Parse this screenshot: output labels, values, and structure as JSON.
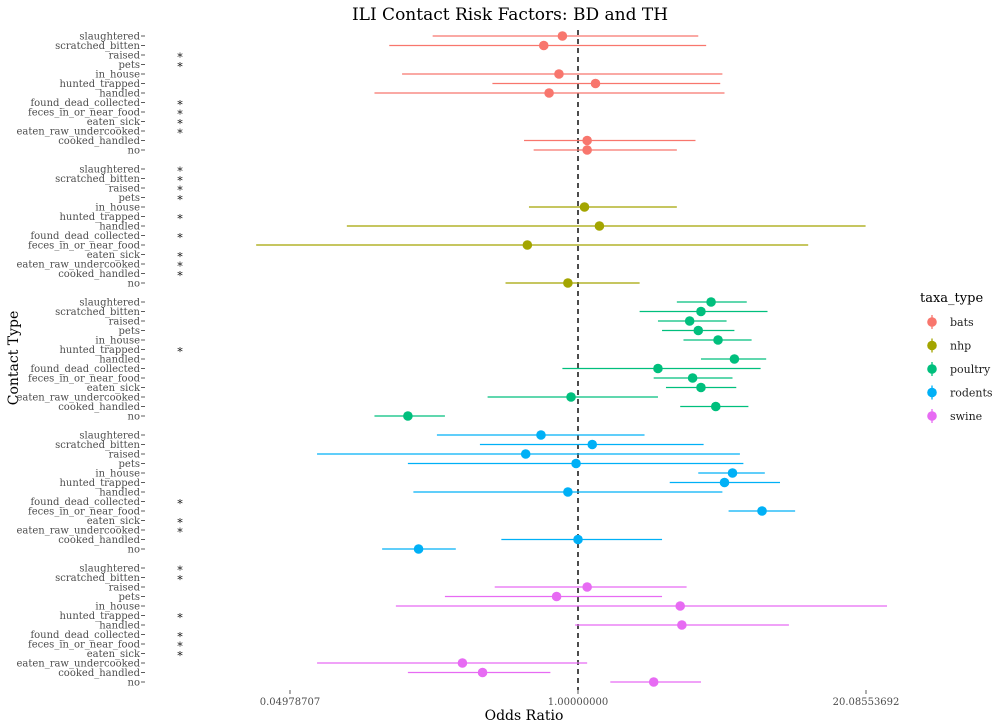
{
  "chart_data": {
    "type": "scatter",
    "subtype": "forest-plot",
    "title": "ILI Contact Risk Factors: BD and TH",
    "xlabel": "Odds Ratio",
    "ylabel": "Contact Type",
    "x_scale": "log",
    "x_ticks": [
      0.04978707,
      1.0,
      20.08553692
    ],
    "x_tick_labels": [
      "0.04978707",
      "1.00000000",
      "20.08553692"
    ],
    "reference_line": 1.0,
    "legend_title": "taxa_type",
    "legend_position": "right",
    "grid": false,
    "series": [
      {
        "name": "bats",
        "color": "#F8766D",
        "rows": [
          {
            "label": "slaughtered",
            "or": 0.85,
            "lo": 0.22,
            "hi": 3.5,
            "star": false
          },
          {
            "label": "scratched_bitten",
            "or": 0.7,
            "lo": 0.14,
            "hi": 3.8,
            "star": false
          },
          {
            "label": "raised",
            "or": null,
            "lo": null,
            "hi": null,
            "star": true
          },
          {
            "label": "pets",
            "or": null,
            "lo": null,
            "hi": null,
            "star": true
          },
          {
            "label": "in_house",
            "or": 0.82,
            "lo": 0.16,
            "hi": 4.5,
            "star": false
          },
          {
            "label": "hunted_trapped",
            "or": 1.2,
            "lo": 0.41,
            "hi": 4.4,
            "star": false
          },
          {
            "label": "handled",
            "or": 0.74,
            "lo": 0.12,
            "hi": 4.6,
            "star": false
          },
          {
            "label": "found_dead_collected",
            "or": null,
            "lo": null,
            "hi": null,
            "star": true
          },
          {
            "label": "feces_in_or_near_food",
            "or": null,
            "lo": null,
            "hi": null,
            "star": true
          },
          {
            "label": "eaten_sick",
            "or": null,
            "lo": null,
            "hi": null,
            "star": true
          },
          {
            "label": "eaten_raw_undercooked",
            "or": null,
            "lo": null,
            "hi": null,
            "star": true
          },
          {
            "label": "cooked_handled",
            "or": 1.1,
            "lo": 0.57,
            "hi": 3.4,
            "star": false
          },
          {
            "label": "no",
            "or": 1.1,
            "lo": 0.63,
            "hi": 2.8,
            "star": false
          }
        ]
      },
      {
        "name": "nhp",
        "color": "#A3A500",
        "rows": [
          {
            "label": "slaughtered",
            "or": null,
            "lo": null,
            "hi": null,
            "star": true
          },
          {
            "label": "scratched_bitten",
            "or": null,
            "lo": null,
            "hi": null,
            "star": true
          },
          {
            "label": "raised",
            "or": null,
            "lo": null,
            "hi": null,
            "star": true
          },
          {
            "label": "pets",
            "or": null,
            "lo": null,
            "hi": null,
            "star": true
          },
          {
            "label": "in_house",
            "or": 1.07,
            "lo": 0.6,
            "hi": 2.8,
            "star": false
          },
          {
            "label": "hunted_trapped",
            "or": null,
            "lo": null,
            "hi": null,
            "star": true
          },
          {
            "label": "handled",
            "or": 1.25,
            "lo": 0.09,
            "hi": 20.0,
            "star": false
          },
          {
            "label": "found_dead_collected",
            "or": null,
            "lo": null,
            "hi": null,
            "star": true
          },
          {
            "label": "feces_in_or_near_food",
            "or": 0.59,
            "lo": 0.035,
            "hi": 11.0,
            "star": false
          },
          {
            "label": "eaten_sick",
            "or": null,
            "lo": null,
            "hi": null,
            "star": true
          },
          {
            "label": "eaten_raw_undercooked",
            "or": null,
            "lo": null,
            "hi": null,
            "star": true
          },
          {
            "label": "cooked_handled",
            "or": null,
            "lo": null,
            "hi": null,
            "star": true
          },
          {
            "label": "no",
            "or": 0.9,
            "lo": 0.47,
            "hi": 1.9,
            "star": false
          }
        ]
      },
      {
        "name": "poultry",
        "color": "#00BF7D",
        "rows": [
          {
            "label": "slaughtered",
            "or": 4.0,
            "lo": 2.8,
            "hi": 5.8,
            "star": false
          },
          {
            "label": "scratched_bitten",
            "or": 3.6,
            "lo": 1.9,
            "hi": 7.2,
            "star": false
          },
          {
            "label": "raised",
            "or": 3.2,
            "lo": 2.3,
            "hi": 4.7,
            "star": false
          },
          {
            "label": "pets",
            "or": 3.5,
            "lo": 2.4,
            "hi": 5.1,
            "star": false
          },
          {
            "label": "in_house",
            "or": 4.3,
            "lo": 3.0,
            "hi": 6.1,
            "star": false
          },
          {
            "label": "hunted_trapped",
            "or": null,
            "lo": null,
            "hi": null,
            "star": true
          },
          {
            "label": "handled",
            "or": 5.1,
            "lo": 3.6,
            "hi": 7.1,
            "star": false
          },
          {
            "label": "found_dead_collected",
            "or": 2.3,
            "lo": 0.85,
            "hi": 6.7,
            "star": false
          },
          {
            "label": "feces_in_or_near_food",
            "or": 3.3,
            "lo": 2.2,
            "hi": 5.0,
            "star": false
          },
          {
            "label": "eaten_sick",
            "or": 3.6,
            "lo": 2.5,
            "hi": 5.2,
            "star": false
          },
          {
            "label": "eaten_raw_undercooked",
            "or": 0.93,
            "lo": 0.39,
            "hi": 2.3,
            "star": false
          },
          {
            "label": "cooked_handled",
            "or": 4.2,
            "lo": 2.9,
            "hi": 5.9,
            "star": false
          },
          {
            "label": "no",
            "or": 0.17,
            "lo": 0.12,
            "hi": 0.25,
            "star": false
          }
        ]
      },
      {
        "name": "rodents",
        "color": "#00B0F6",
        "rows": [
          {
            "label": "slaughtered",
            "or": 0.68,
            "lo": 0.23,
            "hi": 2.0,
            "star": false
          },
          {
            "label": "scratched_bitten",
            "or": 1.16,
            "lo": 0.36,
            "hi": 3.7,
            "star": false
          },
          {
            "label": "raised",
            "or": 0.58,
            "lo": 0.066,
            "hi": 5.4,
            "star": false
          },
          {
            "label": "pets",
            "or": 0.98,
            "lo": 0.17,
            "hi": 5.6,
            "star": false
          },
          {
            "label": "in_house",
            "or": 5.0,
            "lo": 3.5,
            "hi": 7.0,
            "star": false
          },
          {
            "label": "hunted_trapped",
            "or": 4.6,
            "lo": 2.6,
            "hi": 8.2,
            "star": false
          },
          {
            "label": "handled",
            "or": 0.9,
            "lo": 0.18,
            "hi": 4.5,
            "star": false
          },
          {
            "label": "found_dead_collected",
            "or": null,
            "lo": null,
            "hi": null,
            "star": true
          },
          {
            "label": "feces_in_or_near_food",
            "or": 6.8,
            "lo": 4.8,
            "hi": 9.6,
            "star": false
          },
          {
            "label": "eaten_sick",
            "or": null,
            "lo": null,
            "hi": null,
            "star": true
          },
          {
            "label": "eaten_raw_undercooked",
            "or": null,
            "lo": null,
            "hi": null,
            "star": true
          },
          {
            "label": "cooked_handled",
            "or": 1.0,
            "lo": 0.45,
            "hi": 2.4,
            "star": false
          },
          {
            "label": "no",
            "or": 0.19,
            "lo": 0.13,
            "hi": 0.28,
            "star": false
          }
        ]
      },
      {
        "name": "swine",
        "color": "#E76BF3",
        "rows": [
          {
            "label": "slaughtered",
            "or": null,
            "lo": null,
            "hi": null,
            "star": true
          },
          {
            "label": "scratched_bitten",
            "or": null,
            "lo": null,
            "hi": null,
            "star": true
          },
          {
            "label": "raised",
            "or": 1.1,
            "lo": 0.42,
            "hi": 3.1,
            "star": false
          },
          {
            "label": "pets",
            "or": 0.8,
            "lo": 0.25,
            "hi": 2.4,
            "star": false
          },
          {
            "label": "in_house",
            "or": 2.9,
            "lo": 0.15,
            "hi": 25.0,
            "star": false
          },
          {
            "label": "hunted_trapped",
            "or": null,
            "lo": null,
            "hi": null,
            "star": true
          },
          {
            "label": "handled",
            "or": 2.95,
            "lo": 0.97,
            "hi": 9.0,
            "star": false
          },
          {
            "label": "found_dead_collected",
            "or": null,
            "lo": null,
            "hi": null,
            "star": true
          },
          {
            "label": "feces_in_or_near_food",
            "or": null,
            "lo": null,
            "hi": null,
            "star": true
          },
          {
            "label": "eaten_sick",
            "or": null,
            "lo": null,
            "hi": null,
            "star": true
          },
          {
            "label": "eaten_raw_undercooked",
            "or": 0.3,
            "lo": 0.066,
            "hi": 1.1,
            "star": false
          },
          {
            "label": "cooked_handled",
            "or": 0.37,
            "lo": 0.17,
            "hi": 0.75,
            "star": false
          },
          {
            "label": "no",
            "or": 2.2,
            "lo": 1.4,
            "hi": 3.6,
            "star": false
          }
        ]
      }
    ]
  }
}
